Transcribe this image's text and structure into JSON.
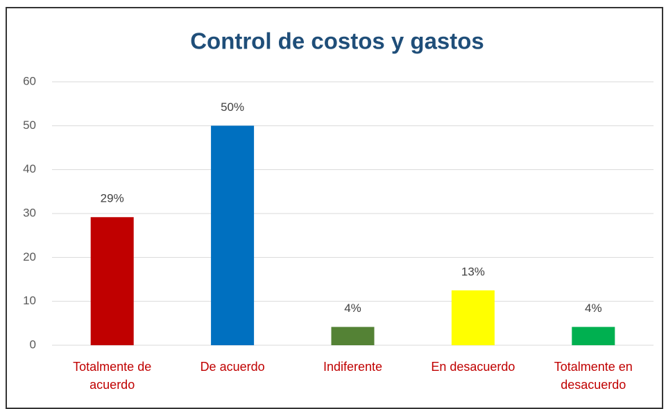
{
  "chart_data": {
    "type": "bar",
    "title": "Control de costos y gastos",
    "categories": [
      "Totalmente de acuerdo",
      "De acuerdo",
      "Indiferente",
      "En desacuerdo",
      "Totalmente en desacuerdo"
    ],
    "values": [
      29.17,
      50,
      4.17,
      12.5,
      4.17
    ],
    "value_labels": [
      "29%",
      "50%",
      "4%",
      "13%",
      "4%"
    ],
    "colors": [
      "#c00000",
      "#0070c0",
      "#548235",
      "#ffff00",
      "#00b050"
    ],
    "ylim": [
      0,
      60
    ],
    "yticks": [
      0,
      10,
      20,
      30,
      40,
      50,
      60
    ],
    "grid": true
  }
}
